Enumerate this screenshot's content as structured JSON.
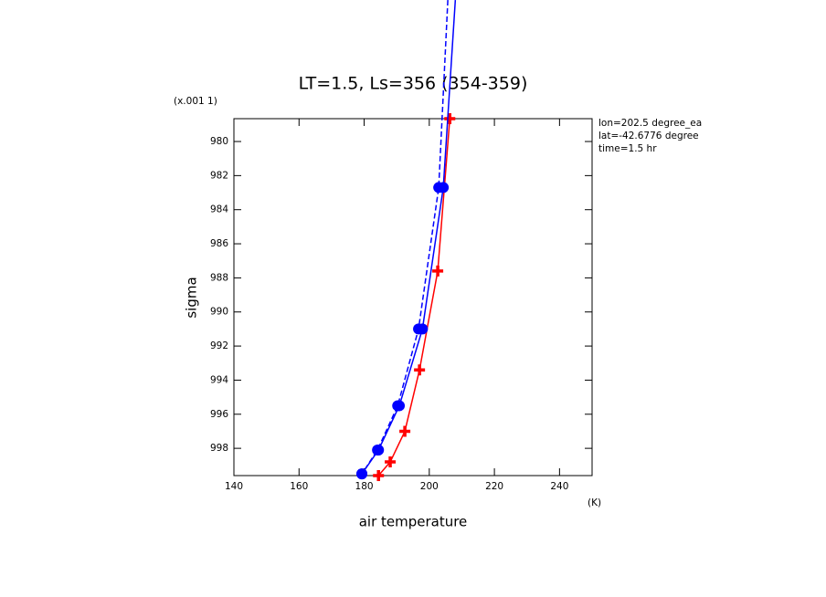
{
  "chart_data": {
    "type": "line",
    "title": "LT=1.5, Ls=356 (354-359)",
    "x_label": "air temperature",
    "x_unit": "(K)",
    "y_label": "sigma",
    "y_unit": "(x.001 1)",
    "annotations": [
      "lon=202.5 degree_ea",
      "lat=-42.6776 degree",
      "time=1.5 hr"
    ],
    "xlim": [
      140,
      250
    ],
    "xticks": [
      140,
      160,
      180,
      200,
      220,
      240
    ],
    "ylim": [
      999.6,
      978.66
    ],
    "yticks": [
      980,
      982,
      984,
      986,
      988,
      990,
      992,
      994,
      996,
      998
    ],
    "series": [
      {
        "color": "#ff0000",
        "marker": "plus",
        "dash": false,
        "x": [
          206.3,
          202.6,
          197.0,
          192.5,
          188.0,
          184.4
        ],
        "values": [
          978.66,
          987.6,
          993.4,
          997.0,
          998.8,
          999.6
        ]
      },
      {
        "color": "#0000ff",
        "marker": "circle",
        "dash": false,
        "x": [
          208.0,
          204.3,
          197.9,
          190.8,
          184.4,
          179.3
        ],
        "values": [
          971.7,
          982.7,
          991.0,
          995.5,
          998.1,
          999.5
        ]
      },
      {
        "color": "#0000ff",
        "marker": "circle",
        "dash": true,
        "x": [
          205.7,
          202.9,
          196.7,
          190.3,
          184.1,
          179.3
        ],
        "values": [
          971.7,
          982.7,
          991.0,
          995.5,
          998.1,
          999.5
        ]
      }
    ]
  }
}
